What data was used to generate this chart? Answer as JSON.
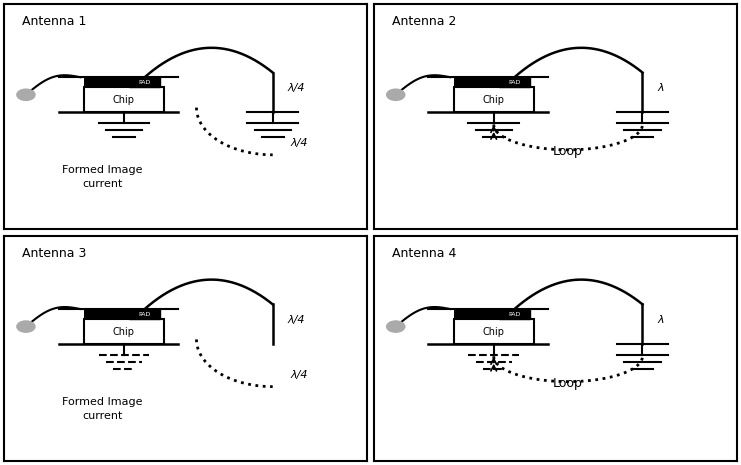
{
  "panels": [
    {
      "label": "Antenna 1",
      "annotation": "λ/4",
      "annotation2": "λ/4",
      "bottom_text": "Formed Image\ncurrent",
      "loop_label": "",
      "ground_right": true,
      "ground_left_dashed": false,
      "has_image_current": true
    },
    {
      "label": "Antenna 2",
      "annotation": "λ",
      "annotation2": "",
      "bottom_text": "",
      "loop_label": "Loop",
      "ground_right": true,
      "ground_left_dashed": false,
      "has_image_current": false
    },
    {
      "label": "Antenna 3",
      "annotation": "λ/4",
      "annotation2": "λ/4",
      "bottom_text": "Formed Image\ncurrent",
      "loop_label": "",
      "ground_right": false,
      "ground_left_dashed": true,
      "has_image_current": true
    },
    {
      "label": "Antenna 4",
      "annotation": "λ",
      "annotation2": "",
      "bottom_text": "",
      "loop_label": "Loop",
      "ground_right": true,
      "ground_left_dashed": true,
      "has_image_current": false
    }
  ],
  "bg_color": "#ffffff",
  "line_color": "#000000",
  "chip_fill": "#ffffff",
  "pad_fill": "#000000",
  "bar_fill": "#000000",
  "circle_color": "#aaaaaa"
}
